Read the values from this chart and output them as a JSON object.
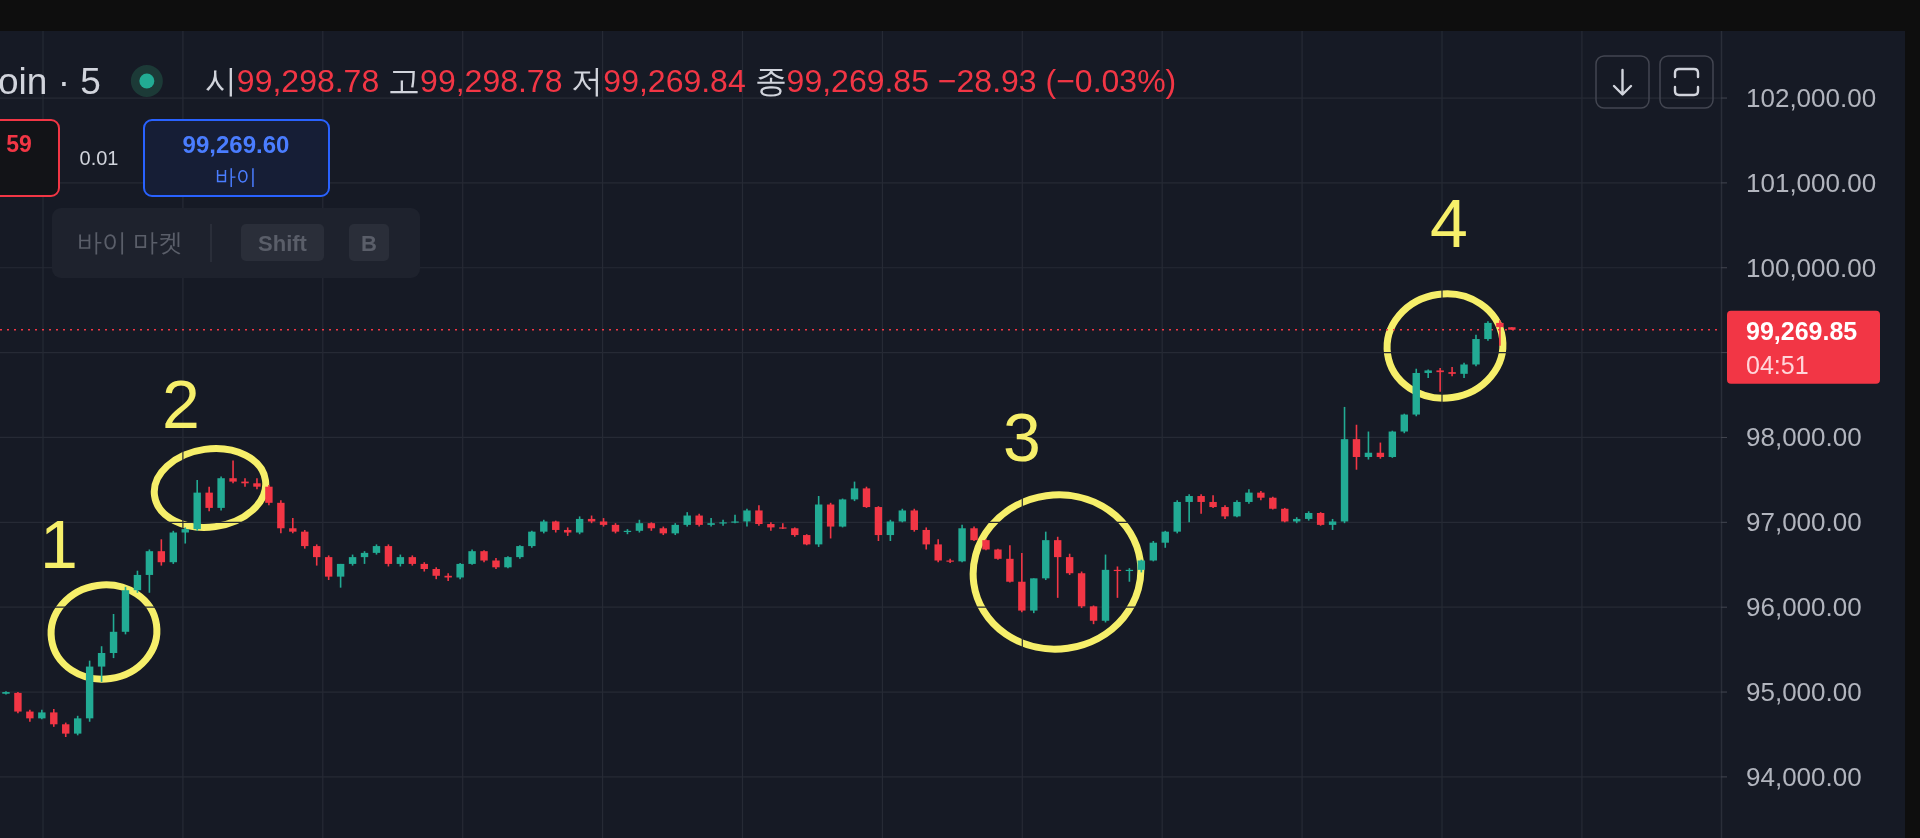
{
  "chart_data": {
    "type": "candlestick",
    "title": "oin · 5",
    "subtitle": "시99,298.78 고99,298.78 저99,269.84 종99,269.85 −28.93 (−0.03%)",
    "categories": [
      null,
      null,
      null,
      null,
      null,
      null,
      null,
      null,
      null,
      null,
      null,
      null,
      null,
      null,
      null,
      null,
      null,
      null,
      null,
      null,
      null,
      null,
      null,
      null,
      null,
      null,
      null,
      null,
      null,
      null,
      null,
      null,
      null,
      null,
      null,
      null,
      null,
      null,
      null,
      null,
      null,
      null,
      null,
      null,
      null,
      null,
      null,
      null,
      null,
      null,
      null,
      null,
      null,
      null,
      null,
      null,
      null,
      null,
      null,
      null,
      null,
      null,
      null,
      null,
      null,
      null,
      null,
      null,
      null,
      null,
      null,
      null,
      null,
      null,
      null,
      null,
      null,
      null,
      null,
      null,
      null,
      null,
      null,
      null,
      null,
      null,
      null,
      null,
      null,
      null,
      null,
      null,
      null,
      null,
      null,
      null,
      null,
      null,
      null,
      null,
      null,
      null,
      null,
      null,
      null,
      null,
      null,
      null,
      null,
      null,
      null,
      null,
      null,
      null,
      null,
      null,
      null,
      null,
      null,
      null,
      null,
      null,
      null,
      null,
      null,
      null,
      null,
      null,
      null,
      null,
      null,
      null,
      null,
      null,
      null,
      null,
      null,
      null,
      null,
      null,
      null,
      null,
      null,
      null
    ],
    "ohlc": [
      [
        94980,
        95010,
        94970,
        95000
      ],
      [
        94990,
        95000,
        94750,
        94770
      ],
      [
        94770,
        94790,
        94650,
        94690
      ],
      [
        94690,
        94790,
        94680,
        94760
      ],
      [
        94760,
        94800,
        94590,
        94620
      ],
      [
        94620,
        94640,
        94470,
        94510
      ],
      [
        94510,
        94720,
        94490,
        94690
      ],
      [
        94690,
        95370,
        94650,
        95300
      ],
      [
        95300,
        95540,
        95120,
        95460
      ],
      [
        95460,
        95920,
        95400,
        95710
      ],
      [
        95710,
        96240,
        95680,
        96200
      ],
      [
        96200,
        96430,
        96170,
        96380
      ],
      [
        96380,
        96680,
        96170,
        96660
      ],
      [
        96660,
        96800,
        96490,
        96530
      ],
      [
        96530,
        96900,
        96510,
        96880
      ],
      [
        96880,
        96940,
        96750,
        96920
      ],
      [
        96920,
        97500,
        96900,
        97350
      ],
      [
        97350,
        97420,
        97130,
        97170
      ],
      [
        97170,
        97540,
        97140,
        97520
      ],
      [
        97520,
        97730,
        97460,
        97480
      ],
      [
        97480,
        97520,
        97420,
        97460
      ],
      [
        97460,
        97520,
        97390,
        97420
      ],
      [
        97420,
        97440,
        97200,
        97230
      ],
      [
        97230,
        97260,
        96870,
        96930
      ],
      [
        96930,
        97050,
        96870,
        96890
      ],
      [
        96890,
        96910,
        96690,
        96720
      ],
      [
        96720,
        96740,
        96490,
        96590
      ],
      [
        96590,
        96610,
        96320,
        96360
      ],
      [
        96360,
        96510,
        96230,
        96510
      ],
      [
        96510,
        96620,
        96490,
        96590
      ],
      [
        96590,
        96660,
        96510,
        96640
      ],
      [
        96640,
        96740,
        96620,
        96720
      ],
      [
        96720,
        96740,
        96480,
        96510
      ],
      [
        96510,
        96620,
        96480,
        96590
      ],
      [
        96590,
        96610,
        96490,
        96510
      ],
      [
        96510,
        96530,
        96420,
        96450
      ],
      [
        96450,
        96470,
        96330,
        96370
      ],
      [
        96370,
        96400,
        96310,
        96350
      ],
      [
        96350,
        96520,
        96330,
        96510
      ],
      [
        96510,
        96680,
        96500,
        96660
      ],
      [
        96660,
        96670,
        96530,
        96550
      ],
      [
        96550,
        96580,
        96450,
        96470
      ],
      [
        96470,
        96600,
        96460,
        96590
      ],
      [
        96590,
        96730,
        96570,
        96720
      ],
      [
        96720,
        96900,
        96700,
        96890
      ],
      [
        96890,
        97030,
        96870,
        97010
      ],
      [
        97010,
        97020,
        96880,
        96910
      ],
      [
        96910,
        96940,
        96840,
        96880
      ],
      [
        96880,
        97070,
        96860,
        97040
      ],
      [
        97040,
        97080,
        96990,
        97010
      ],
      [
        97010,
        97050,
        96950,
        96970
      ],
      [
        96970,
        96990,
        96870,
        96890
      ],
      [
        96890,
        96920,
        96860,
        96900
      ],
      [
        96900,
        97030,
        96880,
        96990
      ],
      [
        96990,
        97000,
        96900,
        96930
      ],
      [
        96930,
        96950,
        96850,
        96870
      ],
      [
        96870,
        96990,
        96850,
        96970
      ],
      [
        96970,
        97120,
        96950,
        97080
      ],
      [
        97080,
        97100,
        96950,
        96970
      ],
      [
        96970,
        97050,
        96950,
        96990
      ],
      [
        96990,
        97030,
        96960,
        97000
      ],
      [
        97000,
        97090,
        96990,
        97010
      ],
      [
        97010,
        97160,
        96950,
        97140
      ],
      [
        97140,
        97200,
        96960,
        96980
      ],
      [
        96980,
        97000,
        96900,
        96940
      ],
      [
        96940,
        96990,
        96920,
        96930
      ],
      [
        96930,
        96940,
        96830,
        96850
      ],
      [
        96850,
        96860,
        96730,
        96740
      ],
      [
        96740,
        97310,
        96710,
        97210
      ],
      [
        97210,
        97230,
        96810,
        96950
      ],
      [
        96950,
        97280,
        96940,
        97270
      ],
      [
        97270,
        97480,
        97250,
        97400
      ],
      [
        97400,
        97420,
        97170,
        97180
      ],
      [
        97180,
        97190,
        96780,
        96850
      ],
      [
        96850,
        97030,
        96780,
        97010
      ],
      [
        97010,
        97160,
        97000,
        97140
      ],
      [
        97140,
        97160,
        96890,
        96910
      ],
      [
        96910,
        96940,
        96680,
        96740
      ],
      [
        96740,
        96800,
        96530,
        96550
      ],
      [
        96550,
        96570,
        96520,
        96540
      ],
      [
        96540,
        96970,
        96530,
        96930
      ],
      [
        96930,
        96950,
        96780,
        96790
      ],
      [
        96790,
        96800,
        96670,
        96680
      ],
      [
        96680,
        96690,
        96560,
        96570
      ],
      [
        96570,
        96730,
        96290,
        96300
      ],
      [
        96300,
        96640,
        95940,
        95960
      ],
      [
        95960,
        96340,
        95930,
        96340
      ],
      [
        96340,
        96890,
        96320,
        96790
      ],
      [
        96790,
        96830,
        96110,
        96590
      ],
      [
        96590,
        96630,
        96380,
        96400
      ],
      [
        96400,
        96420,
        95990,
        96010
      ],
      [
        96010,
        96020,
        95800,
        95840
      ],
      [
        95840,
        96620,
        95820,
        96440
      ],
      [
        96440,
        96480,
        96110,
        96430
      ],
      [
        96430,
        96460,
        96300,
        96440
      ],
      [
        96440,
        96560,
        96410,
        96550
      ],
      [
        96550,
        96780,
        96540,
        96760
      ],
      [
        96760,
        96900,
        96700,
        96890
      ],
      [
        96890,
        97260,
        96870,
        97240
      ],
      [
        97240,
        97330,
        97000,
        97310
      ],
      [
        97310,
        97330,
        97100,
        97240
      ],
      [
        97240,
        97320,
        97170,
        97180
      ],
      [
        97180,
        97200,
        97040,
        97070
      ],
      [
        97070,
        97260,
        97060,
        97240
      ],
      [
        97240,
        97390,
        97220,
        97350
      ],
      [
        97350,
        97370,
        97260,
        97290
      ],
      [
        97290,
        97300,
        97150,
        97160
      ],
      [
        97160,
        97170,
        97000,
        97010
      ],
      [
        97010,
        97060,
        96990,
        97040
      ],
      [
        97040,
        97130,
        97020,
        97110
      ],
      [
        97110,
        97120,
        96960,
        96970
      ],
      [
        96970,
        97040,
        96910,
        97010
      ],
      [
        97010,
        98360,
        96990,
        97980
      ],
      [
        97980,
        98150,
        97620,
        97770
      ],
      [
        97770,
        98070,
        97740,
        97820
      ],
      [
        97820,
        97940,
        97750,
        97770
      ],
      [
        97770,
        98080,
        97760,
        98070
      ],
      [
        98070,
        98280,
        98050,
        98270
      ],
      [
        98270,
        98810,
        98250,
        98760
      ],
      [
        98760,
        98800,
        98700,
        98790
      ],
      [
        98790,
        98820,
        98540,
        98770
      ],
      [
        98770,
        98830,
        98720,
        98750
      ],
      [
        98750,
        98880,
        98700,
        98860
      ],
      [
        98860,
        99210,
        98840,
        99160
      ],
      [
        99160,
        99370,
        99140,
        99350
      ],
      [
        99350,
        99380,
        99080,
        99300
      ],
      [
        99298.78,
        99298.78,
        99269.84,
        99269.85
      ],
      null,
      null,
      null,
      null,
      null,
      null,
      null,
      null,
      null,
      null,
      null,
      null,
      null,
      null,
      null,
      null,
      null
    ],
    "colors": [
      "#22ab94",
      "#f23645",
      "#f23645",
      "#22ab94",
      "#f23645",
      "#f23645",
      "#22ab94",
      "#22ab94",
      "#22ab94",
      "#22ab94",
      "#22ab94",
      "#22ab94",
      "#22ab94",
      "#f23645",
      "#22ab94",
      "#22ab94",
      "#22ab94",
      "#f23645",
      "#22ab94",
      "#f23645",
      "#f23645",
      "#f23645",
      "#f23645",
      "#f23645",
      "#f23645",
      "#f23645",
      "#f23645",
      "#f23645",
      "#22ab94",
      "#22ab94",
      "#22ab94",
      "#22ab94",
      "#f23645",
      "#22ab94",
      "#f23645",
      "#f23645",
      "#f23645",
      "#f23645",
      "#22ab94",
      "#22ab94",
      "#f23645",
      "#f23645",
      "#22ab94",
      "#22ab94",
      "#22ab94",
      "#22ab94",
      "#f23645",
      "#f23645",
      "#22ab94",
      "#f23645",
      "#f23645",
      "#f23645",
      "#22ab94",
      "#22ab94",
      "#f23645",
      "#f23645",
      "#22ab94",
      "#22ab94",
      "#f23645",
      "#22ab94",
      "#22ab94",
      "#22ab94",
      "#22ab94",
      "#f23645",
      "#f23645",
      "#f23645",
      "#f23645",
      "#f23645",
      "#22ab94",
      "#f23645",
      "#22ab94",
      "#22ab94",
      "#f23645",
      "#f23645",
      "#22ab94",
      "#22ab94",
      "#f23645",
      "#f23645",
      "#f23645",
      "#f23645",
      "#22ab94",
      "#f23645",
      "#f23645",
      "#f23645",
      "#f23645",
      "#f23645",
      "#22ab94",
      "#22ab94",
      "#f23645",
      "#f23645",
      "#f23645",
      "#f23645",
      "#22ab94",
      "#f23645",
      "#22ab94",
      "#22ab94",
      "#22ab94",
      "#22ab94",
      "#22ab94",
      "#22ab94",
      "#f23645",
      "#f23645",
      "#f23645",
      "#22ab94",
      "#22ab94",
      "#f23645",
      "#f23645",
      "#f23645",
      "#22ab94",
      "#22ab94",
      "#f23645",
      "#22ab94",
      "#22ab94",
      "#f23645",
      "#22ab94",
      "#f23645",
      "#22ab94",
      "#22ab94",
      "#22ab94",
      "#22ab94",
      "#f23645",
      "#f23645",
      "#22ab94",
      "#22ab94",
      "#22ab94",
      "#f23645",
      "#f23645",
      null,
      null,
      null,
      null,
      null,
      null,
      null,
      null,
      null,
      null,
      null,
      null,
      null,
      null,
      null,
      null,
      null
    ],
    "ylim": [
      93280,
      102790
    ],
    "yticks": [
      {
        "value": 94000,
        "label": "94,000.00"
      },
      {
        "value": 95000,
        "label": "95,000.00"
      },
      {
        "value": 96000,
        "label": "96,000.00"
      },
      {
        "value": 97000,
        "label": "97,000.00"
      },
      {
        "value": 98000,
        "label": "98,000.00"
      },
      {
        "value": 99000,
        "label": null
      },
      {
        "value": 100000,
        "label": "100,000.00"
      },
      {
        "value": 101000,
        "label": "101,000.00"
      },
      {
        "value": 102000,
        "label": "102,000.00"
      }
    ],
    "grid": true,
    "ref_lines": [
      {
        "axis": "y",
        "value": 99269.85,
        "label": "99,269.85",
        "color": "#f23645",
        "line_style": "dotted"
      }
    ],
    "annotations": [
      "59",
      "0.01",
      "99,269.60",
      "바이",
      "바이 마켓",
      "Shift",
      "B",
      "04:51",
      "1",
      "2",
      "3",
      "4"
    ]
  }
}
